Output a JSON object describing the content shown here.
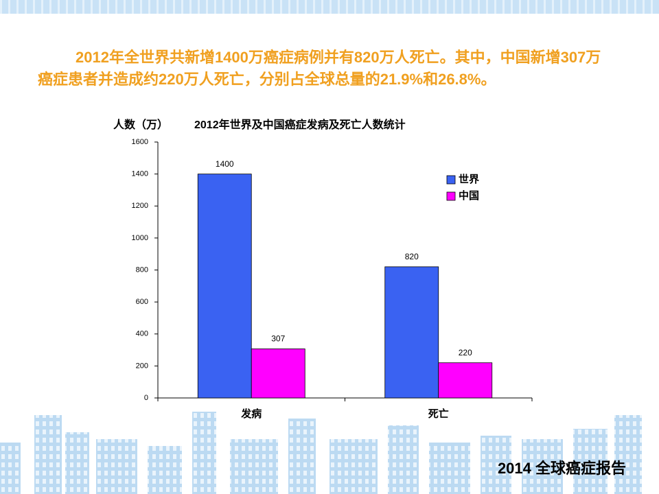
{
  "intro": "2012年全世界共新增1400万癌症病例并有820万人死亡。其中，中国新增307万癌症患者并造成约220万人死亡，分别占全球总量的21.9%和26.8%。",
  "chart_data": {
    "type": "bar",
    "title": "2012年世界及中国癌症发病及死亡人数统计",
    "y_label": "人数（万）",
    "categories": [
      "发病",
      "死亡"
    ],
    "series": [
      {
        "name": "世界",
        "color": "#3a62f2",
        "values": [
          1400,
          820
        ]
      },
      {
        "name": "中国",
        "color": "#ff00ff",
        "values": [
          307,
          220
        ]
      }
    ],
    "ylim": [
      0,
      1600
    ],
    "yticks": [
      0,
      200,
      400,
      600,
      800,
      1000,
      1200,
      1400,
      1600
    ],
    "grid": false,
    "legend": "top-right"
  },
  "footer": "2014 全球癌症报告"
}
